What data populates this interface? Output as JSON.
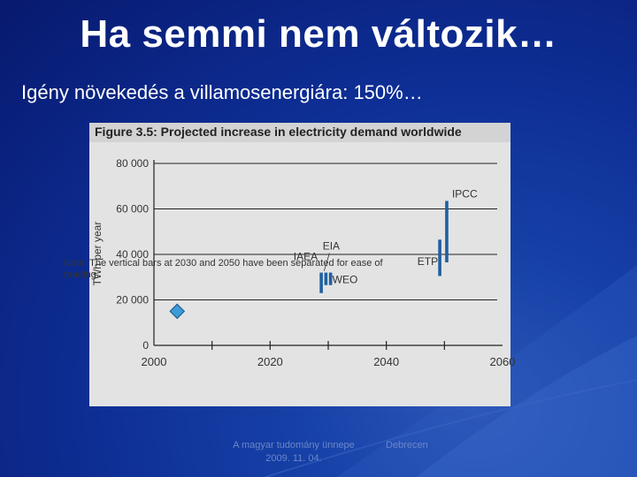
{
  "slide": {
    "title": "Ha semmi nem változik…",
    "subtitle": "Igény növekedés a villamosenergiára: 150%…",
    "footer_left_line1": "A magyar tudomány ünnepe",
    "footer_left_line2": "2009. 11. 04.",
    "footer_right": "Debrecen"
  },
  "colors": {
    "background": "#0e2f96",
    "bar": "#1f5fa0",
    "point": "#3d9bd6"
  },
  "chart_data": {
    "type": "scatter",
    "title": "Figure 3.5: Projected increase in electricity demand worldwide",
    "xlabel": "",
    "ylabel": "TWh per year",
    "xlim": [
      2000,
      2060
    ],
    "ylim": [
      0,
      80000
    ],
    "x_ticks": [
      2000,
      2020,
      2040,
      2060
    ],
    "y_ticks": [
      0,
      20000,
      40000,
      60000,
      80000
    ],
    "y_tick_labels": [
      "0",
      "20 000",
      "40 000",
      "60 000",
      "80 000"
    ],
    "grid": "horizontal",
    "note": "Note: The vertical bars at 2030 and 2050 have been separated for ease of reading.",
    "points": [
      {
        "x": 2004,
        "y": 15000,
        "marker": "diamond"
      }
    ],
    "ranges": [
      {
        "label": "IAEA",
        "x": 2028.8,
        "low": 23000,
        "high": 32000
      },
      {
        "label": "EIA",
        "x": 2029.6,
        "low": 26500,
        "high": 32000
      },
      {
        "label": "WEO",
        "x": 2030.4,
        "low": 26500,
        "high": 32000
      },
      {
        "label": "ETP",
        "x": 2049.2,
        "low": 30500,
        "high": 46500
      },
      {
        "label": "IPCC",
        "x": 2050.4,
        "low": 36500,
        "high": 63500
      }
    ]
  }
}
